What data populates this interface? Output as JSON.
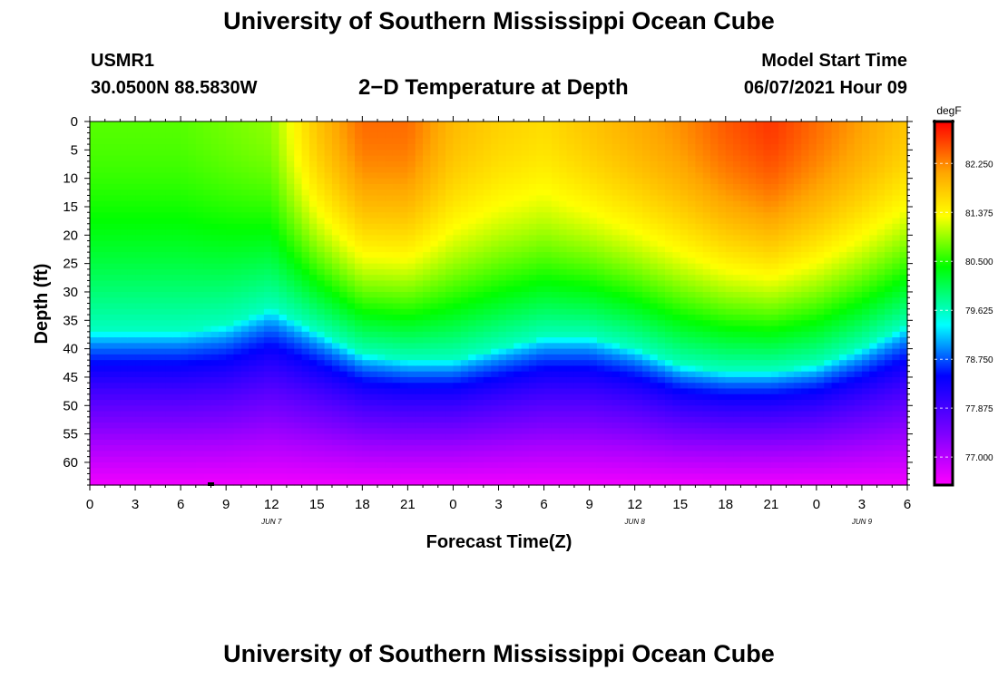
{
  "header": {
    "title": "University of Southern Mississippi Ocean Cube",
    "station_id": "USMR1",
    "station_coords": "30.0500N  88.5830W",
    "plot_title": "2−D Temperature at Depth",
    "start_label": "Model Start Time",
    "start_value": "06/07/2021 Hour 09"
  },
  "footer": {
    "title": "University of Southern Mississippi Ocean Cube"
  },
  "colors": {
    "scale": [
      "#ff00ff",
      "#7f00ff",
      "#0000ff",
      "#00ffff",
      "#00ff00",
      "#ffff00",
      "#ffa500",
      "#ff0000"
    ]
  },
  "chart_data": {
    "type": "heatmap",
    "title": "2−D Temperature at Depth",
    "xlabel": "Forecast Time(Z)",
    "ylabel": "Depth (ft)",
    "x_range_hours": [
      0,
      54
    ],
    "x_ticks": [
      "0",
      "3",
      "6",
      "9",
      "12",
      "15",
      "18",
      "21",
      "0",
      "3",
      "6",
      "9",
      "12",
      "15",
      "18",
      "21",
      "0",
      "3",
      "6"
    ],
    "date_labels": [
      {
        "text": "JUN 7",
        "hour": 12
      },
      {
        "text": "JUN 8",
        "hour": 36
      },
      {
        "text": "JUN 9",
        "hour": 51
      }
    ],
    "y_range": [
      0,
      64
    ],
    "y_ticks": [
      "0",
      "5",
      "10",
      "15",
      "20",
      "25",
      "30",
      "35",
      "40",
      "45",
      "50",
      "55",
      "60"
    ],
    "thermocline_depth_ft": [
      [
        0,
        37
      ],
      [
        6,
        37
      ],
      [
        9,
        36
      ],
      [
        12,
        33
      ],
      [
        15,
        37
      ],
      [
        18,
        41
      ],
      [
        21,
        42
      ],
      [
        24,
        42
      ],
      [
        27,
        40
      ],
      [
        30,
        38
      ],
      [
        33,
        38
      ],
      [
        36,
        40
      ],
      [
        39,
        43
      ],
      [
        42,
        44
      ],
      [
        45,
        44
      ],
      [
        48,
        43
      ],
      [
        51,
        40
      ],
      [
        54,
        36
      ]
    ],
    "surface_temp_degF": [
      [
        0,
        80.7
      ],
      [
        6,
        80.7
      ],
      [
        9,
        80.8
      ],
      [
        12,
        80.9
      ],
      [
        15,
        81.8
      ],
      [
        18,
        82.4
      ],
      [
        21,
        82.4
      ],
      [
        24,
        81.9
      ],
      [
        27,
        81.7
      ],
      [
        30,
        81.6
      ],
      [
        33,
        81.8
      ],
      [
        36,
        82.0
      ],
      [
        39,
        82.2
      ],
      [
        42,
        82.5
      ],
      [
        45,
        82.7
      ],
      [
        48,
        82.4
      ],
      [
        51,
        82.1
      ],
      [
        54,
        81.8
      ]
    ],
    "colorbar": {
      "label": "degF",
      "min": 76.5,
      "max": 83.0,
      "ticks": [
        "82.250",
        "81.375",
        "80.500",
        "79.625",
        "78.750",
        "77.875",
        "77.000"
      ],
      "tick_values": [
        82.25,
        81.375,
        80.5,
        79.625,
        78.75,
        77.875,
        77.0
      ]
    }
  }
}
